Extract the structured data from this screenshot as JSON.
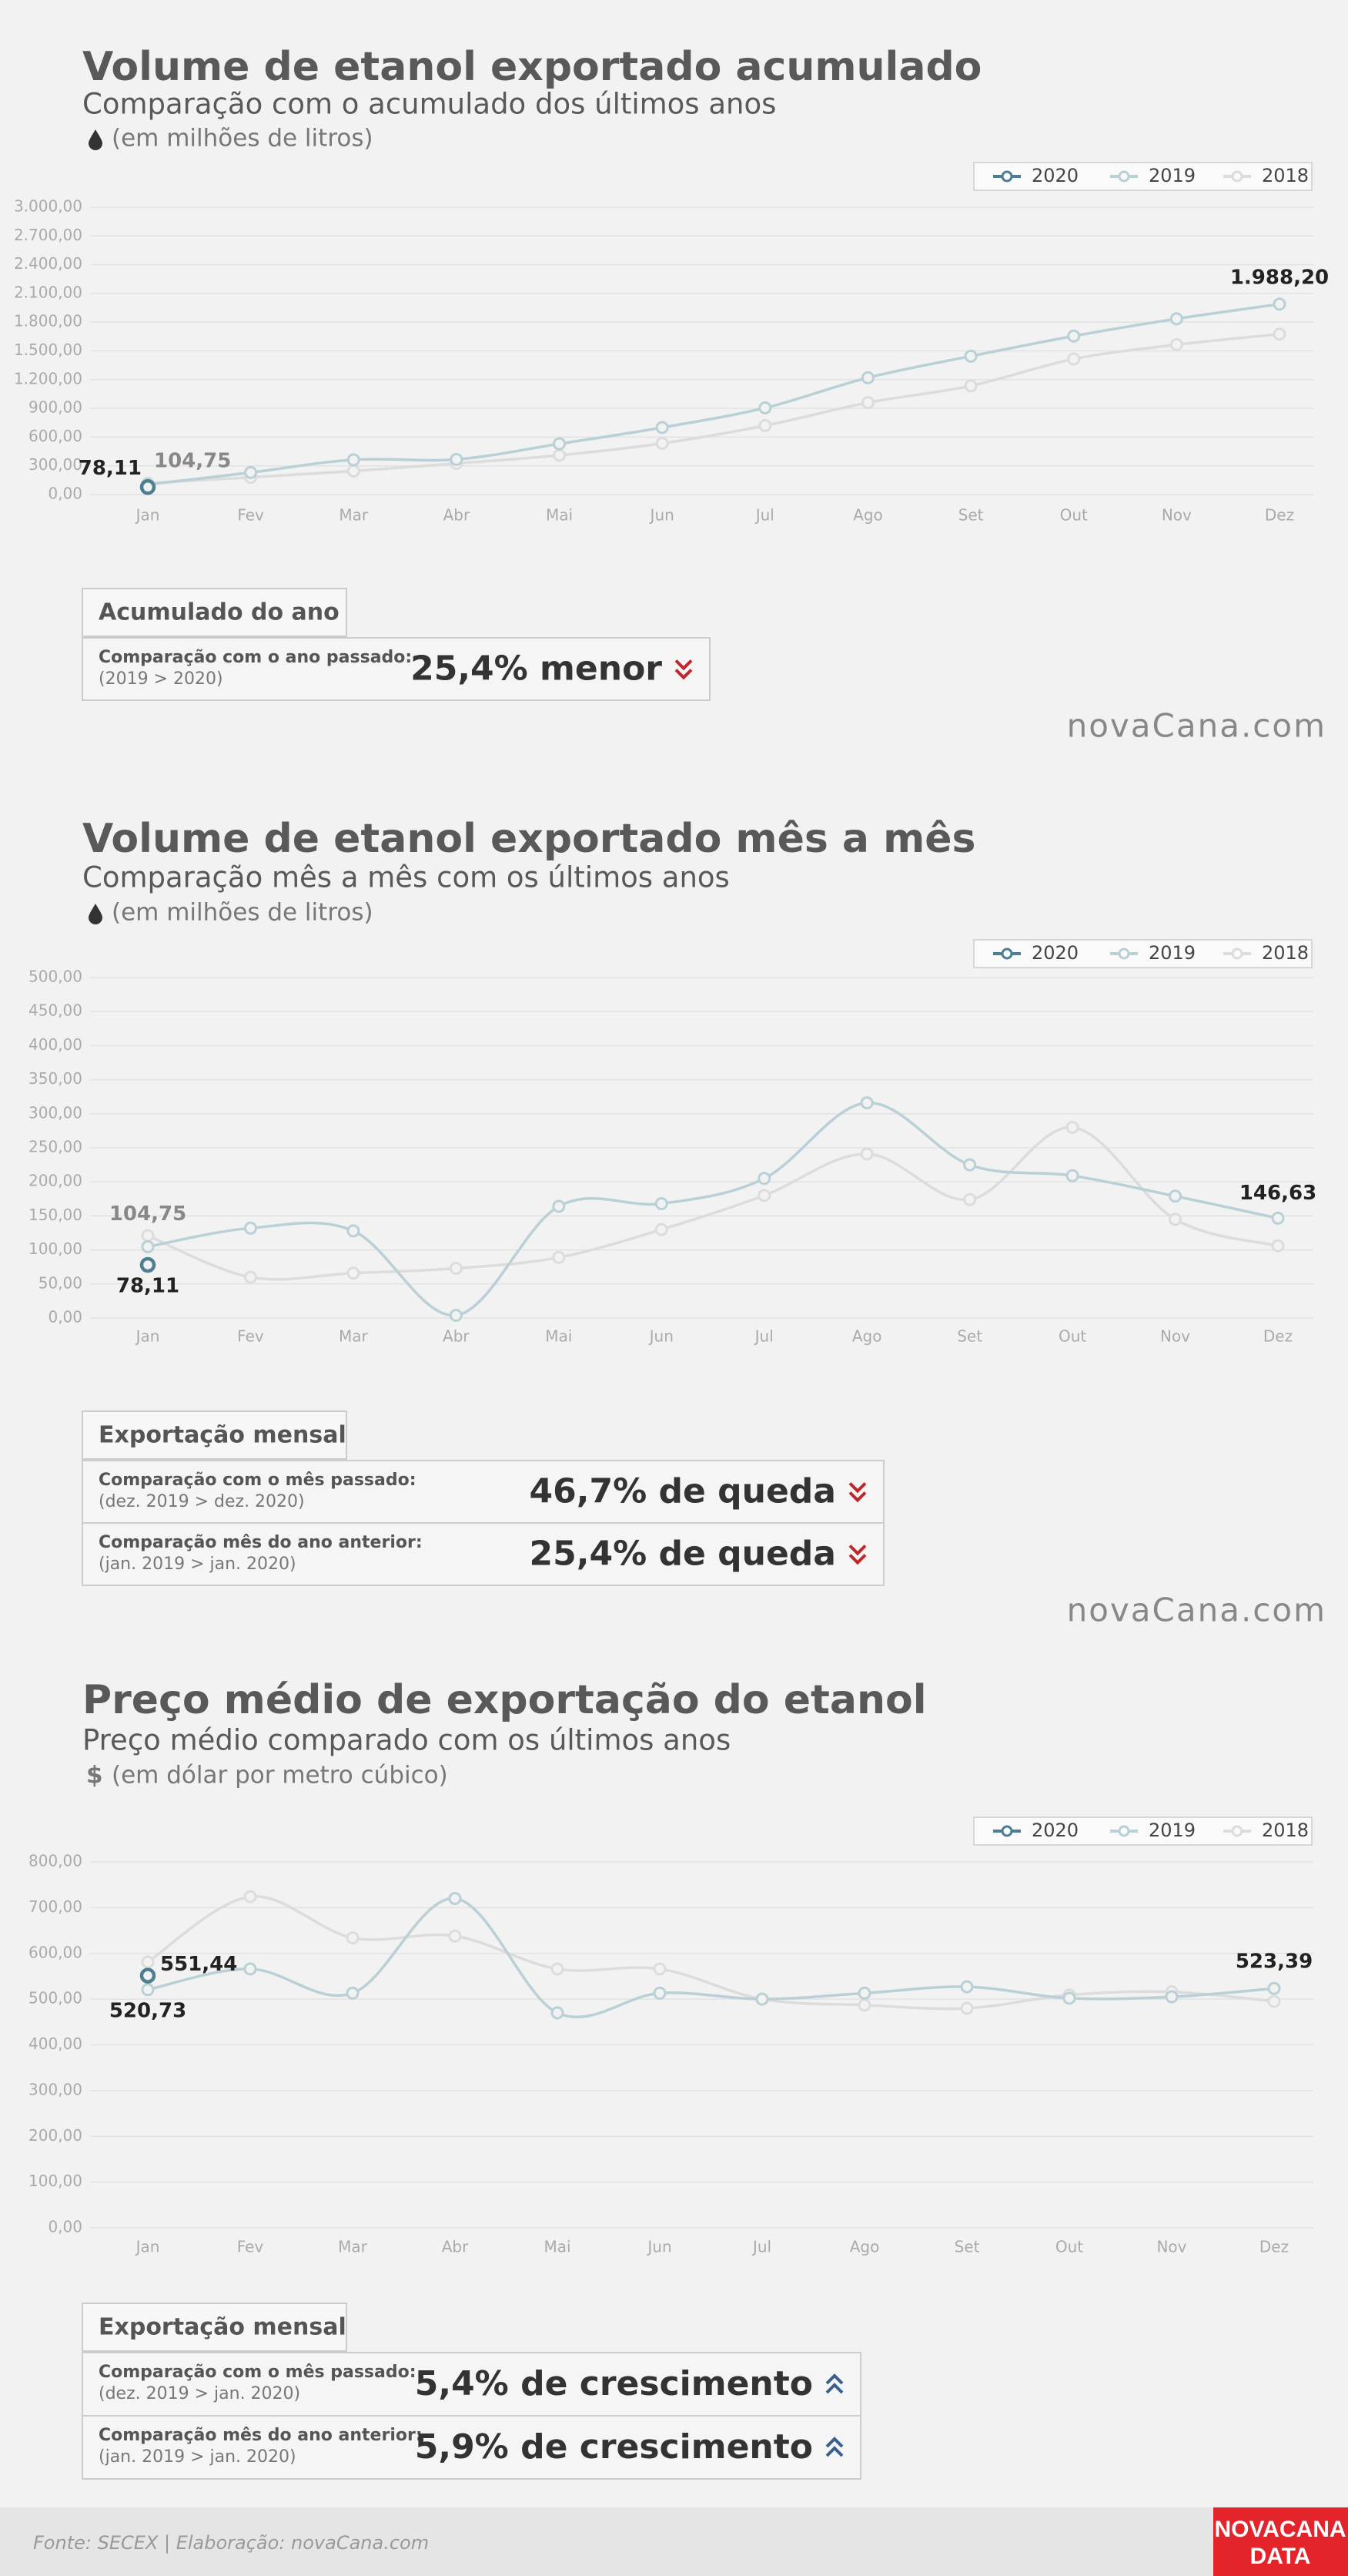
{
  "chart_data": [
    {
      "type": "line",
      "title": "Volume de etanol exportado acumulado",
      "subtitle": "Comparação com o acumulado dos últimos anos",
      "unit_label": "(em milhões de litros)",
      "categories": [
        "Jan",
        "Fev",
        "Mar",
        "Abr",
        "Mai",
        "Jun",
        "Jul",
        "Ago",
        "Set",
        "Out",
        "Nov",
        "Dez"
      ],
      "series": [
        {
          "name": "2020",
          "color": "#4d7f91",
          "values": [
            78.11,
            null,
            null,
            null,
            null,
            null,
            null,
            null,
            null,
            null,
            null,
            null
          ],
          "value_labels": [
            "78,11",
            null,
            null,
            null,
            null,
            null,
            null,
            null,
            null,
            null,
            null,
            null
          ]
        },
        {
          "name": "2019",
          "color": "#b9d0d6",
          "values": [
            104.75,
            230,
            363,
            367,
            530,
            700,
            905,
            1220,
            1445,
            1655,
            1835,
            1988.2
          ],
          "value_labels": [
            "104,75",
            null,
            null,
            null,
            null,
            null,
            null,
            null,
            null,
            null,
            null,
            "1.988,20"
          ]
        },
        {
          "name": "2018",
          "color": "#dcdcdc",
          "values": [
            120,
            180,
            245,
            325,
            410,
            535,
            720,
            960,
            1135,
            1415,
            1565,
            1675
          ]
        }
      ],
      "ylim": [
        0,
        3000
      ],
      "yticks": [
        {
          "value": 0,
          "label": "0,00"
        },
        {
          "value": 300,
          "label": "300,00"
        },
        {
          "value": 600,
          "label": "600,00"
        },
        {
          "value": 900,
          "label": "900,00"
        },
        {
          "value": 1200,
          "label": "1.200,00"
        },
        {
          "value": 1500,
          "label": "1.500,00"
        },
        {
          "value": 1800,
          "label": "1.800,00"
        },
        {
          "value": 2100,
          "label": "2.100,00"
        },
        {
          "value": 2400,
          "label": "2.400,00"
        },
        {
          "value": 2700,
          "label": "2.700,00"
        },
        {
          "value": 3000,
          "label": "3.000,00"
        }
      ],
      "grid": true,
      "legend": "top-right"
    },
    {
      "type": "line",
      "title": "Volume de etanol exportado mês a mês",
      "subtitle": "Comparação mês a mês com os últimos anos",
      "unit_label": "(em milhões de litros)",
      "categories": [
        "Jan",
        "Fev",
        "Mar",
        "Abr",
        "Mai",
        "Jun",
        "Jul",
        "Ago",
        "Set",
        "Out",
        "Nov",
        "Dez"
      ],
      "series": [
        {
          "name": "2020",
          "color": "#4d7f91",
          "values": [
            78.11,
            null,
            null,
            null,
            null,
            null,
            null,
            null,
            null,
            null,
            null,
            null
          ],
          "value_labels": [
            "78,11",
            null,
            null,
            null,
            null,
            null,
            null,
            null,
            null,
            null,
            null,
            null
          ]
        },
        {
          "name": "2019",
          "color": "#b9d0d6",
          "values": [
            104.75,
            132,
            128,
            4,
            164,
            168,
            205,
            316,
            225,
            209,
            179,
            146.63
          ],
          "value_labels": [
            "104,75",
            null,
            null,
            null,
            null,
            null,
            null,
            null,
            null,
            null,
            null,
            "146,63"
          ]
        },
        {
          "name": "2018",
          "color": "#dcdcdc",
          "values": [
            121,
            60,
            66,
            73,
            89,
            130,
            180,
            241,
            174,
            280,
            145,
            106
          ]
        }
      ],
      "ylim": [
        0,
        500
      ],
      "yticks": [
        {
          "value": 0,
          "label": "0,00"
        },
        {
          "value": 50,
          "label": "50,00"
        },
        {
          "value": 100,
          "label": "100,00"
        },
        {
          "value": 150,
          "label": "150,00"
        },
        {
          "value": 200,
          "label": "200,00"
        },
        {
          "value": 250,
          "label": "250,00"
        },
        {
          "value": 300,
          "label": "300,00"
        },
        {
          "value": 350,
          "label": "350,00"
        },
        {
          "value": 400,
          "label": "400,00"
        },
        {
          "value": 450,
          "label": "450,00"
        },
        {
          "value": 500,
          "label": "500,00"
        }
      ],
      "grid": true,
      "legend": "top-right"
    },
    {
      "type": "line",
      "title": "Preço médio de exportação do etanol",
      "subtitle": "Preço médio comparado com os últimos anos",
      "unit_symbol": "$",
      "unit_label": "(em dólar por metro cúbico)",
      "categories": [
        "Jan",
        "Fev",
        "Mar",
        "Abr",
        "Mai",
        "Jun",
        "Jul",
        "Ago",
        "Set",
        "Out",
        "Nov",
        "Dez"
      ],
      "series": [
        {
          "name": "2020",
          "color": "#4d7f91",
          "values": [
            551.44,
            null,
            null,
            null,
            null,
            null,
            null,
            null,
            null,
            null,
            null,
            null
          ],
          "value_labels": [
            "551,44",
            null,
            null,
            null,
            null,
            null,
            null,
            null,
            null,
            null,
            null,
            null
          ]
        },
        {
          "name": "2019",
          "color": "#b9d0d6",
          "values": [
            520.73,
            566,
            513,
            720,
            470,
            513,
            500,
            513,
            527,
            502,
            505,
            523.39
          ],
          "value_labels": [
            "520,73",
            null,
            null,
            null,
            null,
            null,
            null,
            null,
            null,
            null,
            null,
            "523,39"
          ]
        },
        {
          "name": "2018",
          "color": "#dcdcdc",
          "values": [
            581,
            724,
            634,
            638,
            566,
            566,
            500,
            487,
            480,
            509,
            516,
            495
          ]
        }
      ],
      "ylim": [
        0,
        800
      ],
      "yticks": [
        {
          "value": 0,
          "label": "0,00"
        },
        {
          "value": 100,
          "label": "100,00"
        },
        {
          "value": 200,
          "label": "200,00"
        },
        {
          "value": 300,
          "label": "300,00"
        },
        {
          "value": 400,
          "label": "400,00"
        },
        {
          "value": 500,
          "label": "500,00"
        },
        {
          "value": 600,
          "label": "600,00"
        },
        {
          "value": 700,
          "label": "700,00"
        },
        {
          "value": 800,
          "label": "800,00"
        }
      ],
      "grid": true,
      "legend": "top-right"
    }
  ],
  "summaries": [
    {
      "heading": "Acumulado do ano",
      "rows": [
        {
          "label": "Comparação com o ano passado:",
          "detail": "(2019 > 2020)",
          "result": "25,4% menor",
          "direction": "down"
        }
      ]
    },
    {
      "heading": "Exportação mensal",
      "rows": [
        {
          "label": "Comparação com o mês passado:",
          "detail": "(dez. 2019 > dez. 2020)",
          "result": "46,7% de queda",
          "direction": "down"
        },
        {
          "label": "Comparação mês do ano anterior:",
          "detail": "(jan. 2019 > jan. 2020)",
          "result": "25,4% de queda",
          "direction": "down"
        }
      ]
    },
    {
      "heading": "Exportação mensal",
      "rows": [
        {
          "label": "Comparação com o mês passado:",
          "detail": "(dez. 2019 > jan. 2020)",
          "result": "5,4% de crescimento",
          "direction": "up"
        },
        {
          "label": "Comparação mês do ano anterior:",
          "detail": "(jan. 2019 > jan. 2020)",
          "result": "5,9% de crescimento",
          "direction": "up"
        }
      ]
    }
  ],
  "brand": "novaCana.com",
  "footer": {
    "source": "Fonte: SECEX | Elaboração: novaCana.com",
    "logo": [
      "NOVACANA",
      "DATA"
    ]
  }
}
